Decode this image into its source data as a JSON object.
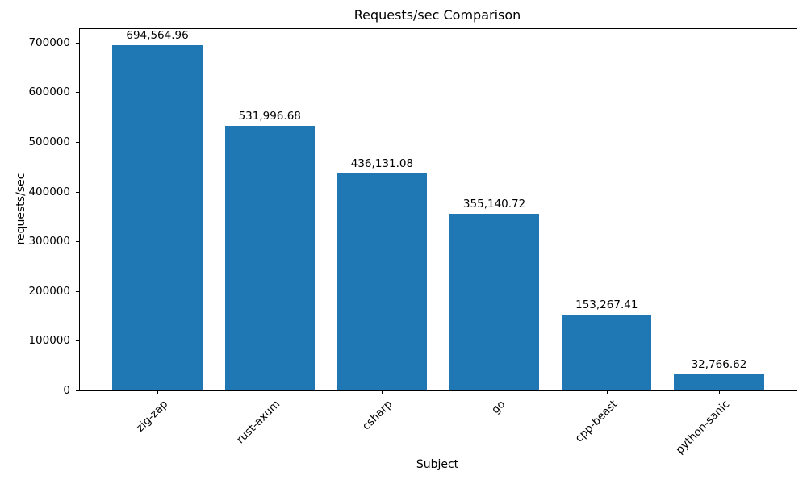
{
  "chart_data": {
    "type": "bar",
    "title": "Requests/sec Comparison",
    "xlabel": "Subject",
    "ylabel": "requests/sec",
    "categories": [
      "zig-zap",
      "rust-axum",
      "csharp",
      "go",
      "cpp-beast",
      "python-sanic"
    ],
    "values": [
      694564.96,
      531996.68,
      436131.08,
      355140.72,
      153267.41,
      32766.62
    ],
    "value_labels": [
      "694,564.96",
      "531,996.68",
      "436,131.08",
      "355,140.72",
      "153,267.41",
      "32,766.62"
    ],
    "bar_color": "#1f77b4",
    "yticks": [
      0,
      100000,
      200000,
      300000,
      400000,
      500000,
      600000,
      700000
    ],
    "ylim": [
      0,
      727000
    ],
    "xlim": [
      -0.69,
      5.69
    ],
    "bar_width": 0.8,
    "grid": false,
    "legend": null,
    "x_tick_rotation_deg": 45
  }
}
